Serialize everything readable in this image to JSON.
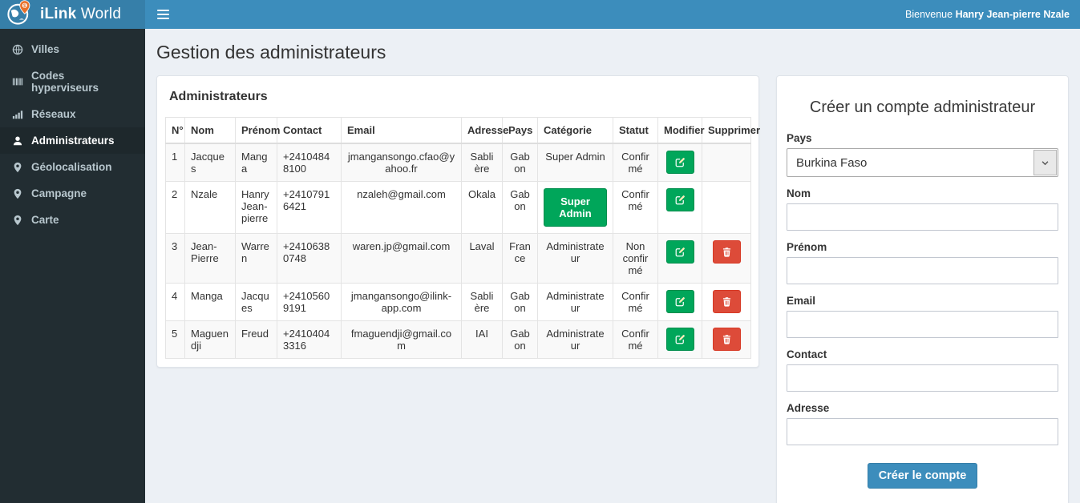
{
  "brand": {
    "bold": "iLink",
    "regular": " World"
  },
  "topbar": {
    "welcome_prefix": "Bienvenue ",
    "user_name": "Hanry Jean-pierre Nzale"
  },
  "sidebar": {
    "items": [
      {
        "label": "Villes",
        "icon": "globe-icon",
        "active": false
      },
      {
        "label": "Codes hyperviseurs",
        "icon": "barcode-icon",
        "active": false
      },
      {
        "label": "Réseaux",
        "icon": "signal-icon",
        "active": false
      },
      {
        "label": "Administrateurs",
        "icon": "user-icon",
        "active": true
      },
      {
        "label": "Géolocalisation",
        "icon": "map-marker-icon",
        "active": false
      },
      {
        "label": "Campagne",
        "icon": "map-marker-icon",
        "active": false
      },
      {
        "label": "Carte",
        "icon": "map-marker-icon",
        "active": false
      }
    ]
  },
  "page": {
    "title": "Gestion des administrateurs"
  },
  "admin_panel": {
    "title": "Administrateurs",
    "table": {
      "columns": [
        "N°",
        "Nom",
        "Prénom",
        "Contact",
        "Email",
        "Adresse",
        "Pays",
        "Catégorie",
        "Statut",
        "Modifier",
        "Supprimer"
      ],
      "rows": [
        {
          "num": "1",
          "nom": "Jacques",
          "prenom": "Manga",
          "contact": "+24104848100",
          "email": "jmangansongo.cfao@yahoo.fr",
          "adresse": "Sablière",
          "pays": "Gabon",
          "categorie": "Super Admin",
          "categorie_style": "text",
          "statut": "Confirmé",
          "can_delete": false
        },
        {
          "num": "2",
          "nom": "Nzale",
          "prenom": "Hanry Jean-pierre",
          "contact": "+24107916421",
          "email": "nzaleh@gmail.com",
          "adresse": "Okala",
          "pays": "Gabon",
          "categorie": "Super Admin",
          "categorie_style": "button",
          "statut": "Confirmé",
          "can_delete": false
        },
        {
          "num": "3",
          "nom": "Jean-Pierre",
          "prenom": "Warren",
          "contact": "+24106380748",
          "email": "waren.jp@gmail.com",
          "adresse": "Laval",
          "pays": "France",
          "categorie": "Administrateur",
          "categorie_style": "text",
          "statut": "Non confirmé",
          "can_delete": true
        },
        {
          "num": "4",
          "nom": "Manga",
          "prenom": "Jacques",
          "contact": "+24105609191",
          "email": "jmangansongo@ilink-app.com",
          "adresse": "Sablière",
          "pays": "Gabon",
          "categorie": "Administrateur",
          "categorie_style": "text",
          "statut": "Confirmé",
          "can_delete": true
        },
        {
          "num": "5",
          "nom": "Maguendji",
          "prenom": "Freud",
          "contact": "+24104043316",
          "email": "fmaguendji@gmail.com",
          "adresse": "IAI",
          "pays": "Gabon",
          "categorie": "Administrateur",
          "categorie_style": "text",
          "statut": "Confirmé",
          "can_delete": true
        }
      ]
    }
  },
  "create_form": {
    "title": "Créer un compte administrateur",
    "fields": [
      {
        "name": "pays",
        "label": "Pays",
        "type": "select",
        "value": "Burkina Faso"
      },
      {
        "name": "nom",
        "label": "Nom",
        "type": "text",
        "value": "",
        "placeholder": ""
      },
      {
        "name": "prenom",
        "label": "Prénom",
        "type": "text",
        "value": "",
        "placeholder": ""
      },
      {
        "name": "email",
        "label": "Email",
        "type": "text",
        "value": "",
        "placeholder": ""
      },
      {
        "name": "contact",
        "label": "Contact",
        "type": "text",
        "value": "",
        "placeholder": ""
      },
      {
        "name": "adresse",
        "label": "Adresse",
        "type": "text",
        "value": "",
        "placeholder": ""
      }
    ],
    "submit_label": "Créer le compte"
  },
  "colors": {
    "topbar": "#3c8dbc",
    "logo_bg": "#367fa9",
    "sidebar_bg": "#222d32",
    "sidebar_active_bg": "#1e282c",
    "content_bg": "#ecf0f5",
    "success_green": "#00a65a",
    "danger_red": "#dd4b39",
    "pin_orange": "#e8702a"
  }
}
